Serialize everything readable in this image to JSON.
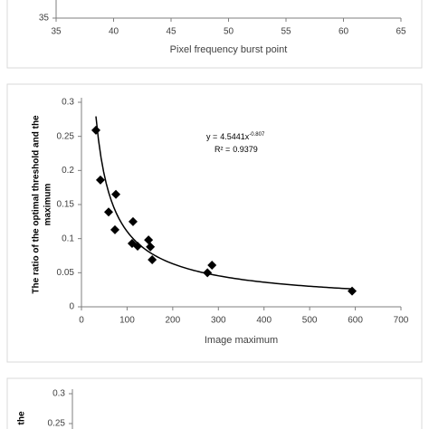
{
  "chart_data": [
    {
      "type": "scatter",
      "xlabel": "Pixel frequency burst point",
      "xlim": [
        35,
        65
      ],
      "xticks": [
        35,
        40,
        45,
        50,
        55,
        60,
        65
      ],
      "ylim": [
        35,
        65
      ],
      "yticks": [
        35
      ]
    },
    {
      "type": "scatter",
      "xlabel": "Image maximum",
      "ylabel": [
        "The ratio of the optimal threshold and the",
        "maximum"
      ],
      "xlim": [
        0,
        700
      ],
      "xticks": [
        0,
        100,
        200,
        300,
        400,
        500,
        600,
        700
      ],
      "ylim": [
        0,
        0.3
      ],
      "yticks": [
        0,
        0.05,
        0.1,
        0.15,
        0.2,
        0.25,
        0.3
      ],
      "series": [
        {
          "color": "#000000",
          "x": [
            31.7,
            41.6,
            59.5,
            75.4,
            73.4,
            113,
            111,
            123,
            147,
            151,
            155,
            276,
            286,
            593
          ],
          "values": [
            0.259,
            0.186,
            0.139,
            0.165,
            0.113,
            0.125,
            0.093,
            0.089,
            0.098,
            0.088,
            0.069,
            0.05,
            0.061,
            0.023
          ]
        }
      ],
      "trendline": {
        "lhs": "y =",
        "coefficient": 4.5441,
        "variable": "x",
        "exponent": -0.807,
        "r2_label": "R² =",
        "r2": 0.9379
      }
    },
    {
      "type": "scatter",
      "ylabel": "the",
      "ylim": [
        0,
        0.3
      ],
      "yticks": [
        0.25,
        0.3
      ]
    }
  ]
}
